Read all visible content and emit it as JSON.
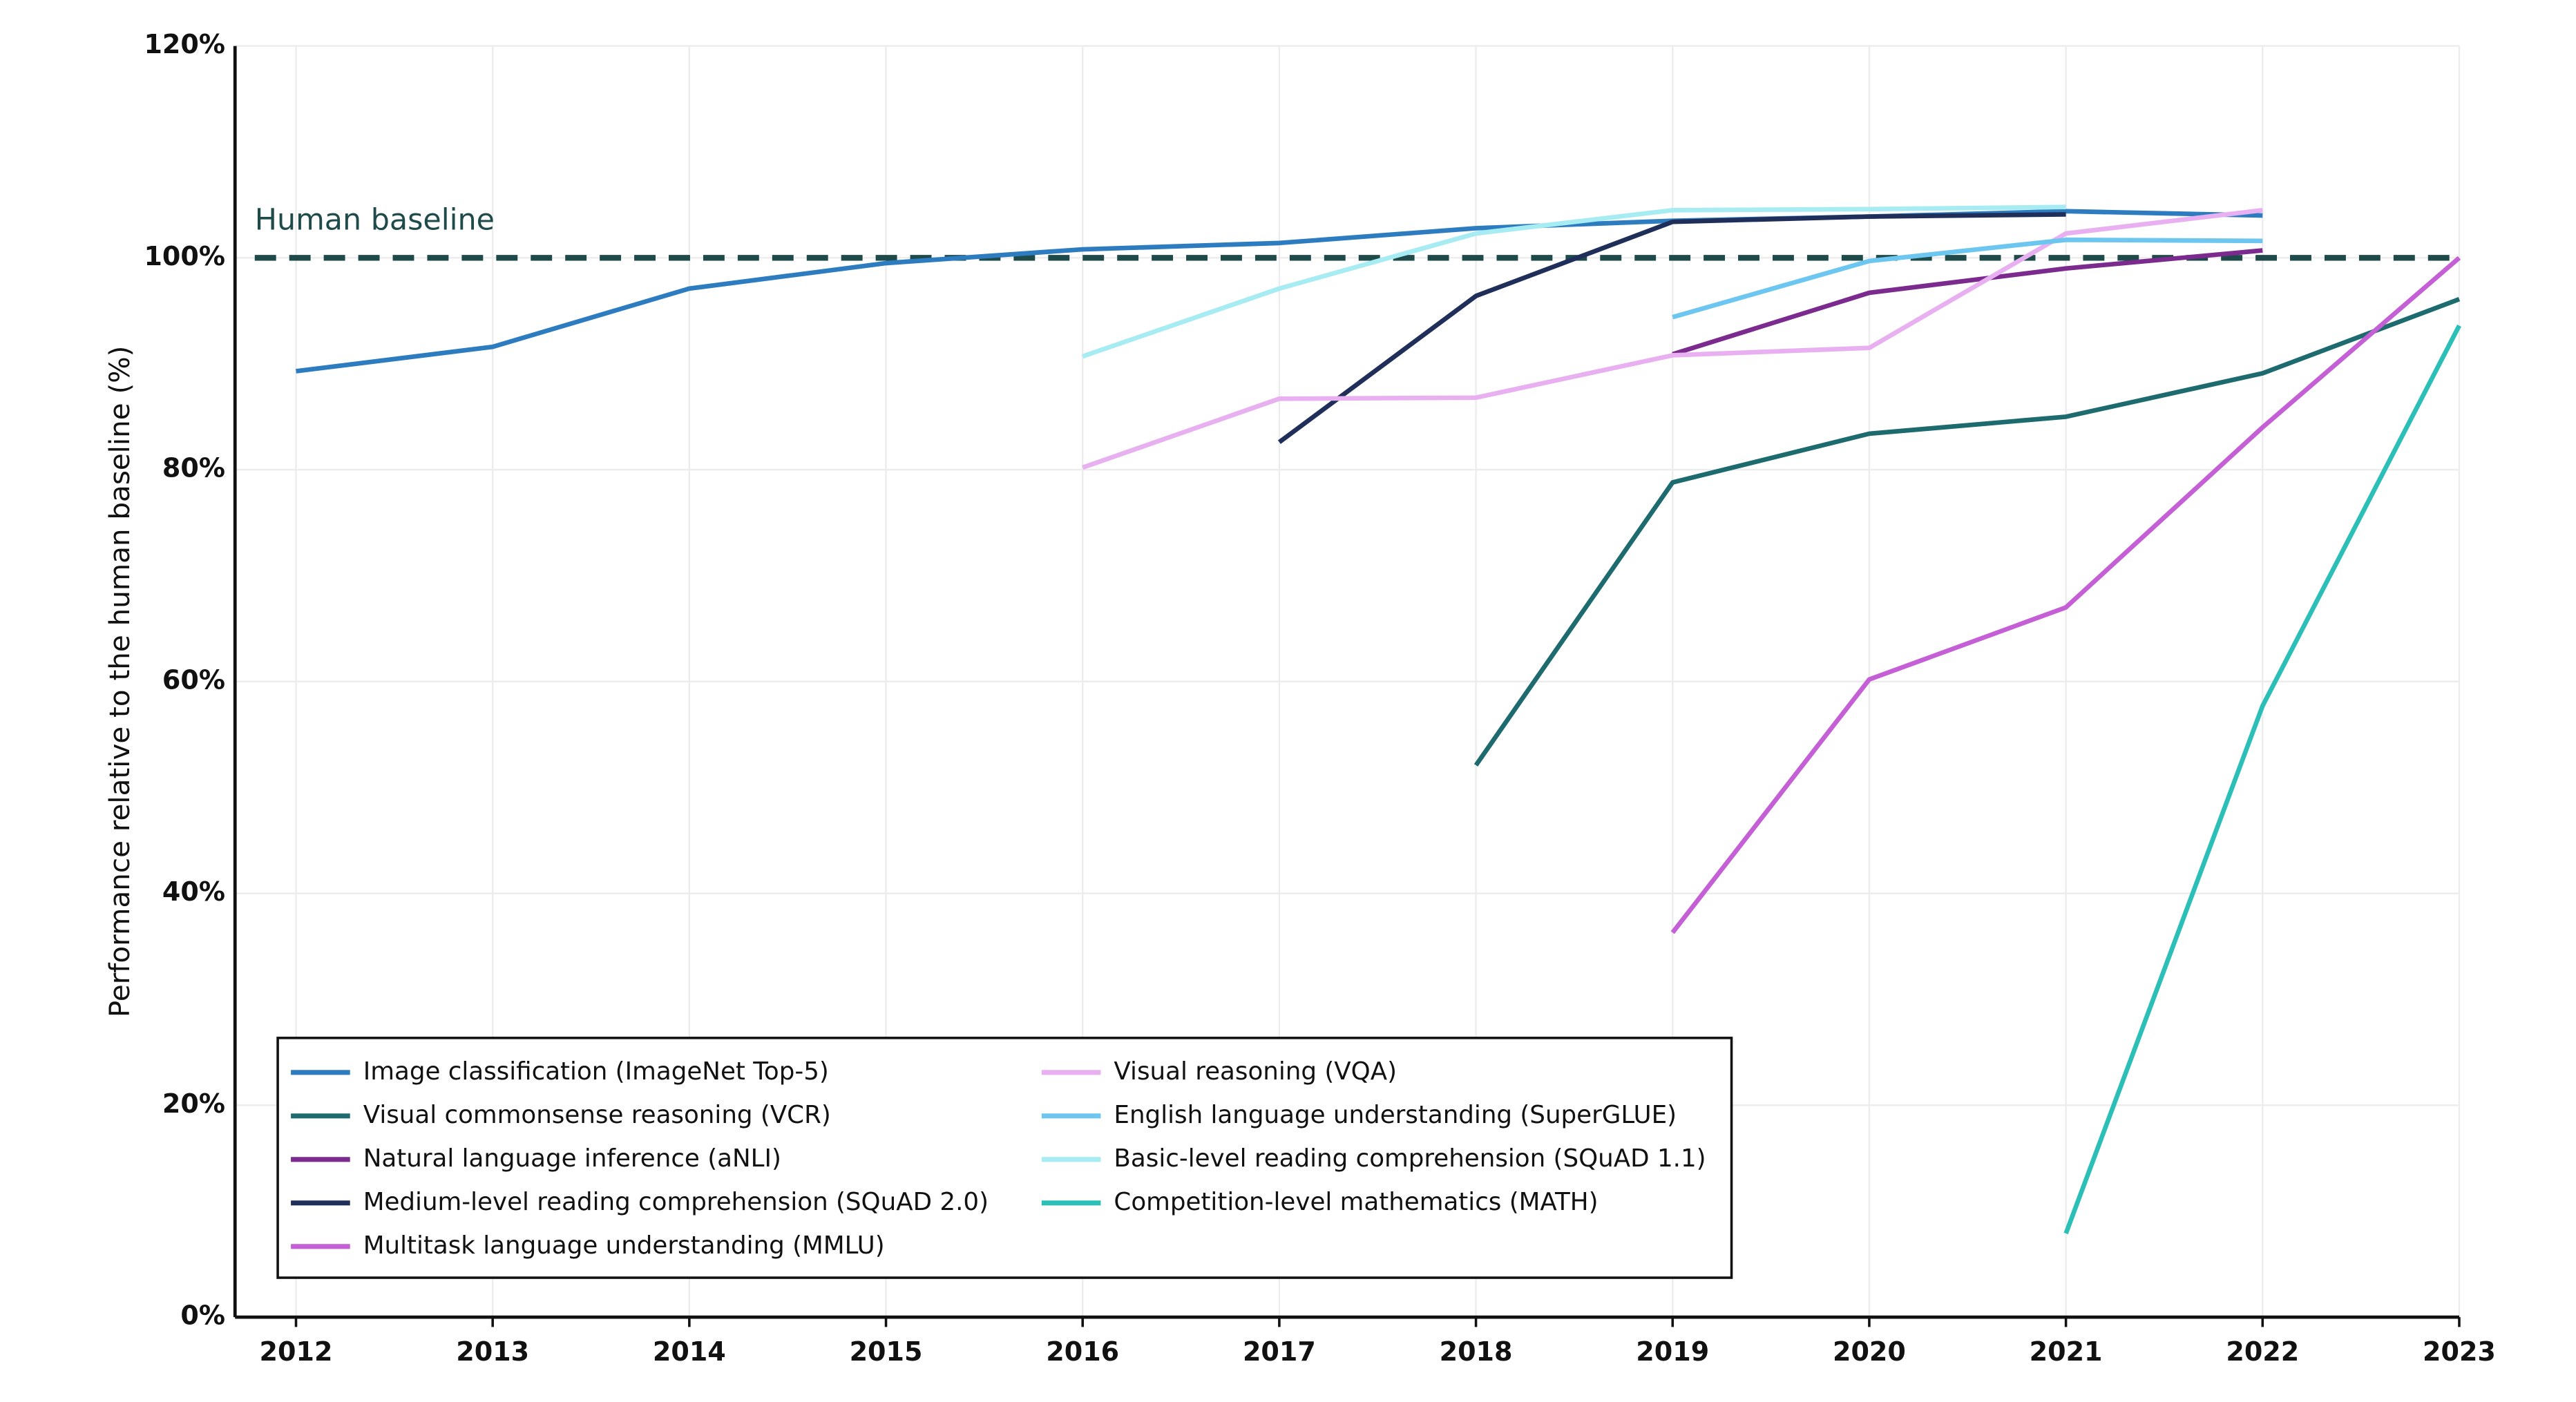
{
  "chart_data": {
    "type": "line",
    "y_label": "Performance relative to the human baseline (%)",
    "x": [
      2012,
      2013,
      2014,
      2015,
      2016,
      2017,
      2018,
      2019,
      2020,
      2021,
      2022,
      2023
    ],
    "xlim": [
      2011.69,
      2023
    ],
    "xticks": [
      2012,
      2013,
      2014,
      2015,
      2016,
      2017,
      2018,
      2019,
      2020,
      2021,
      2022,
      2023
    ],
    "ylim": [
      0,
      120
    ],
    "yticks": [
      {
        "value": 0,
        "label": "0%"
      },
      {
        "value": 20,
        "label": "20%"
      },
      {
        "value": 40,
        "label": "40%"
      },
      {
        "value": 60,
        "label": "60%"
      },
      {
        "value": 80,
        "label": "80%"
      },
      {
        "value": 100,
        "label": "100%"
      },
      {
        "value": 120,
        "label": "120%"
      }
    ],
    "grid": true,
    "legend_position": "lower left",
    "baseline": {
      "label": "Human baseline",
      "value": 100,
      "color": "#1f4a4a"
    },
    "series": [
      {
        "name": "Image classification (ImageNet Top-5)",
        "color": "#2e7cc0",
        "values": [
          89.3,
          91.6,
          97.1,
          99.5,
          100.8,
          101.4,
          102.8,
          103.5,
          103.9,
          104.4,
          104.0,
          null
        ]
      },
      {
        "name": "Visual commonsense reasoning (VCR)",
        "color": "#1d6b6e",
        "values": [
          null,
          null,
          null,
          null,
          null,
          null,
          52.1,
          78.8,
          83.4,
          85.0,
          89.1,
          96.1
        ]
      },
      {
        "name": "Natural language inference (aNLI)",
        "color": "#7b2a8e",
        "values": [
          null,
          null,
          null,
          null,
          null,
          null,
          null,
          90.9,
          96.7,
          99.0,
          100.7,
          null
        ]
      },
      {
        "name": "Medium-level reading comprehension (SQuAD 2.0)",
        "color": "#1f2f5a",
        "values": [
          null,
          null,
          null,
          null,
          null,
          82.6,
          96.4,
          103.4,
          103.9,
          104.1,
          null,
          null
        ]
      },
      {
        "name": "Multitask language understanding (MMLU)",
        "color": "#c45fd6",
        "values": [
          null,
          null,
          null,
          null,
          null,
          null,
          null,
          36.3,
          60.2,
          67.0,
          84.0,
          100.0
        ]
      },
      {
        "name": "Visual reasoning (VQA)",
        "color": "#e8b0f0",
        "values": [
          null,
          null,
          null,
          null,
          80.2,
          86.7,
          86.8,
          90.8,
          91.5,
          102.3,
          104.5,
          null
        ]
      },
      {
        "name": "English language understanding (SuperGLUE)",
        "color": "#6cc6f0",
        "values": [
          null,
          null,
          null,
          null,
          null,
          null,
          null,
          94.4,
          99.7,
          101.7,
          101.6,
          null
        ]
      },
      {
        "name": "Basic-level reading comprehension (SQuAD 1.1)",
        "color": "#a6ecf2",
        "values": [
          null,
          null,
          null,
          null,
          90.7,
          97.1,
          102.3,
          104.5,
          104.6,
          104.8,
          null,
          null
        ]
      },
      {
        "name": "Competition-level mathematics (MATH)",
        "color": "#2bbfb8",
        "values": [
          null,
          null,
          null,
          null,
          null,
          null,
          null,
          null,
          null,
          7.9,
          57.7,
          93.6
        ]
      }
    ]
  }
}
